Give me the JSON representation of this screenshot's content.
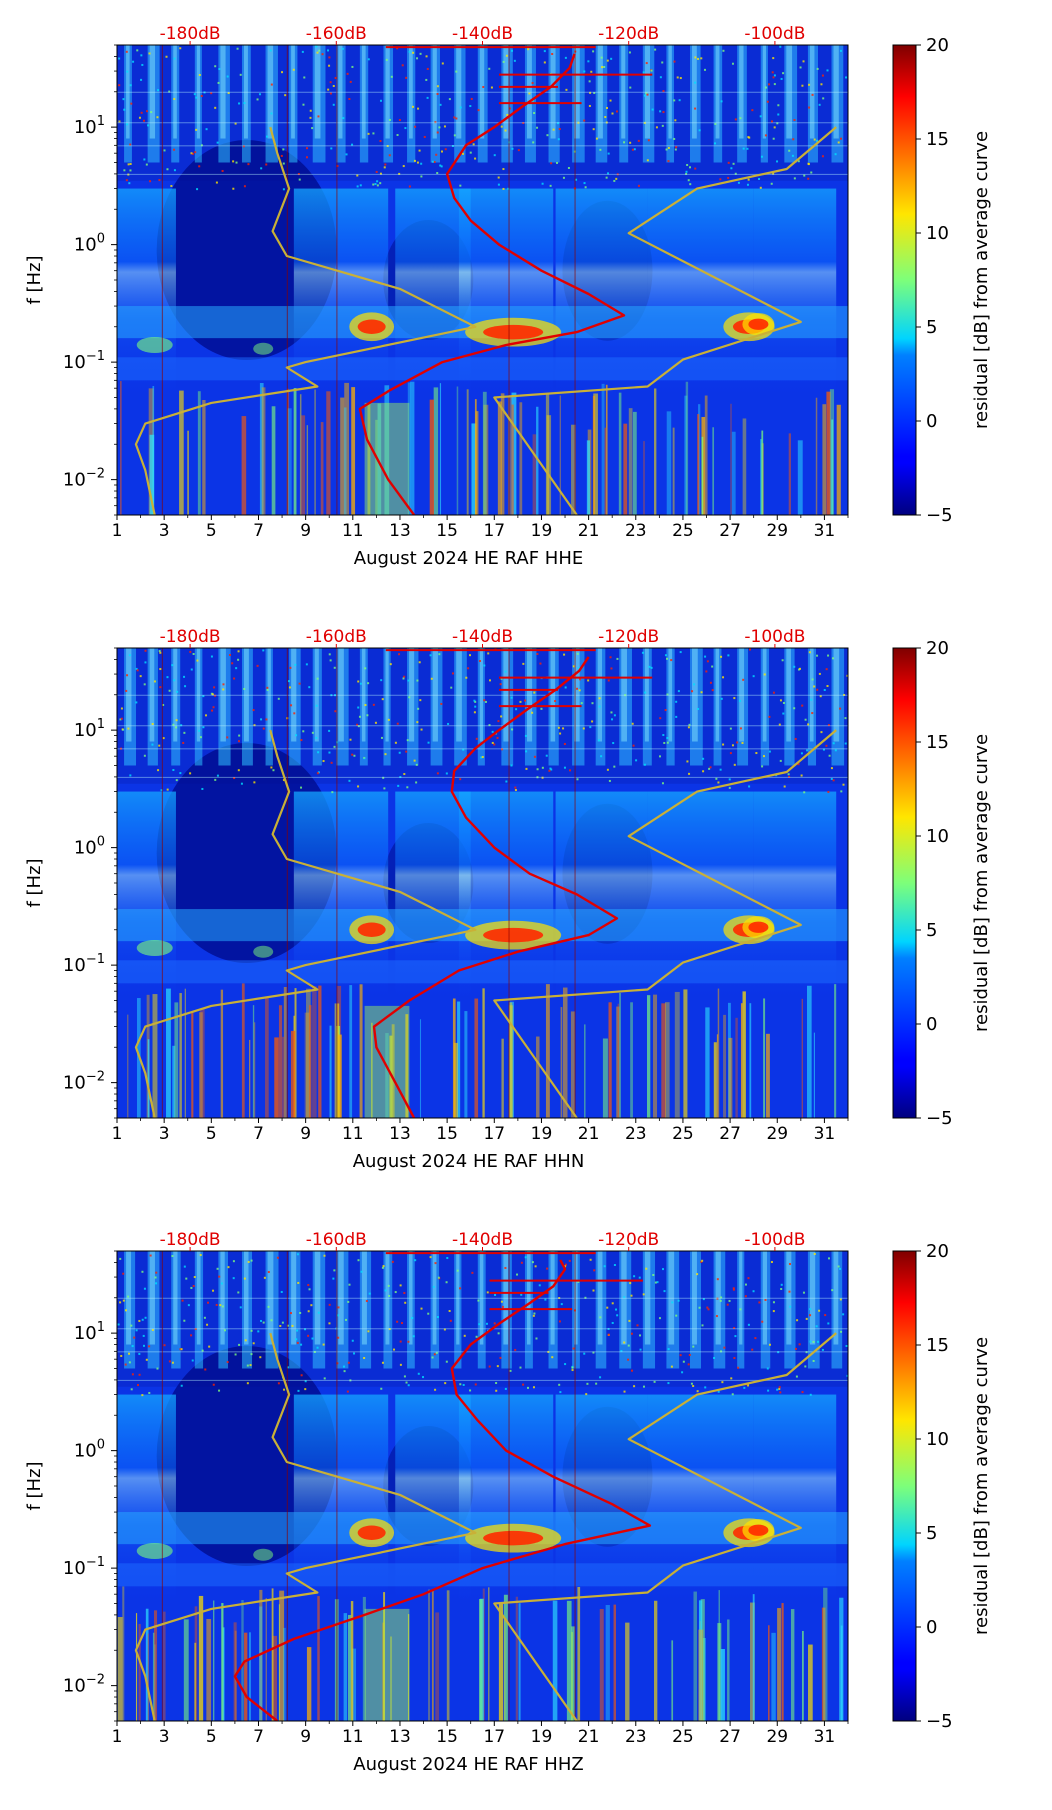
{
  "chart_data": [
    {
      "type": "heatmap",
      "title": "",
      "xlabel": "August 2024 HE RAF  HHE",
      "ylabel": "f [Hz]",
      "x_ticks": [
        1,
        3,
        5,
        7,
        9,
        11,
        13,
        15,
        17,
        19,
        21,
        23,
        25,
        27,
        29,
        31
      ],
      "x_tick_labels": [
        "1",
        "3",
        "5",
        "7",
        "9",
        "11",
        "13",
        "15",
        "17",
        "19",
        "21",
        "23",
        "25",
        "27",
        "29",
        "31"
      ],
      "xlim": [
        1,
        32
      ],
      "y_scale": "log",
      "ylim": [
        0.005,
        50
      ],
      "y_ticks": [
        {
          "value": 0.01,
          "base": "10",
          "exp": "−2"
        },
        {
          "value": 0.1,
          "base": "10",
          "exp": "−1"
        },
        {
          "value": 1,
          "base": "10",
          "exp": "0"
        },
        {
          "value": 10,
          "base": "10",
          "exp": "1"
        }
      ],
      "top_axis_labels": [
        "-180dB",
        "-160dB",
        "-140dB",
        "-120dB",
        "-100dB"
      ],
      "top_axis_positions_day": [
        4.1,
        10.3,
        16.5,
        22.7,
        28.9
      ],
      "colorbar": {
        "label": "residual [dB] from average curve",
        "min": -5,
        "max": 20,
        "ticks": [
          "20",
          "15",
          "10",
          "5",
          "0",
          "−5"
        ]
      },
      "series": [
        {
          "name": "average PSD curve",
          "color": "#e00000",
          "points": [
            [
              13.6,
              0.005
            ],
            [
              12.5,
              0.01
            ],
            [
              11.6,
              0.022
            ],
            [
              11.3,
              0.04
            ],
            [
              12.6,
              0.058
            ],
            [
              14.8,
              0.1
            ],
            [
              17.5,
              0.14
            ],
            [
              20.5,
              0.18
            ],
            [
              22.5,
              0.25
            ],
            [
              21,
              0.38
            ],
            [
              19,
              0.6
            ],
            [
              17.2,
              1.0
            ],
            [
              16,
              1.6
            ],
            [
              15.3,
              2.5
            ],
            [
              15,
              4
            ],
            [
              15.8,
              7
            ],
            [
              17,
              10
            ],
            [
              18.2,
              15
            ],
            [
              19.4,
              22
            ],
            [
              20.2,
              32
            ],
            [
              20.4,
              42
            ]
          ]
        },
        {
          "name": "NLNM",
          "color": "#c9b037",
          "points": [
            [
              2.6,
              0.005
            ],
            [
              2.2,
              0.012
            ],
            [
              1.8,
              0.02
            ],
            [
              2.2,
              0.03
            ],
            [
              5,
              0.045
            ],
            [
              9.5,
              0.062
            ],
            [
              8.2,
              0.09
            ],
            [
              9,
              0.1
            ],
            [
              16.2,
              0.2
            ],
            [
              13,
              0.42
            ],
            [
              8.2,
              0.8
            ],
            [
              7.6,
              1.3
            ],
            [
              8.3,
              3
            ],
            [
              7.8,
              6
            ],
            [
              7.5,
              10
            ]
          ]
        },
        {
          "name": "NHNM",
          "color": "#c9b037",
          "points": [
            [
              20.5,
              0.005
            ],
            [
              17,
              0.05
            ],
            [
              23.5,
              0.062
            ],
            [
              25,
              0.105
            ],
            [
              30,
              0.22
            ],
            [
              22.7,
              1.25
            ],
            [
              25.6,
              3
            ],
            [
              29.4,
              4.4
            ],
            [
              31.5,
              10
            ]
          ]
        }
      ]
    },
    {
      "type": "heatmap",
      "title": "",
      "xlabel": "August 2024 HE RAF  HHN",
      "ylabel": "f [Hz]",
      "x_ticks": [
        1,
        3,
        5,
        7,
        9,
        11,
        13,
        15,
        17,
        19,
        21,
        23,
        25,
        27,
        29,
        31
      ],
      "x_tick_labels": [
        "1",
        "3",
        "5",
        "7",
        "9",
        "11",
        "13",
        "15",
        "17",
        "19",
        "21",
        "23",
        "25",
        "27",
        "29",
        "31"
      ],
      "xlim": [
        1,
        32
      ],
      "y_scale": "log",
      "ylim": [
        0.005,
        50
      ],
      "y_ticks": [
        {
          "value": 0.01,
          "base": "10",
          "exp": "−2"
        },
        {
          "value": 0.1,
          "base": "10",
          "exp": "−1"
        },
        {
          "value": 1,
          "base": "10",
          "exp": "0"
        },
        {
          "value": 10,
          "base": "10",
          "exp": "1"
        }
      ],
      "top_axis_labels": [
        "-180dB",
        "-160dB",
        "-140dB",
        "-120dB",
        "-100dB"
      ],
      "top_axis_positions_day": [
        4.1,
        10.3,
        16.5,
        22.7,
        28.9
      ],
      "colorbar": {
        "label": "residual [dB] from average curve",
        "min": -5,
        "max": 20,
        "ticks": [
          "20",
          "15",
          "10",
          "5",
          "0",
          "−5"
        ]
      },
      "series": [
        {
          "name": "average PSD curve",
          "color": "#e00000",
          "points": [
            [
              13.6,
              0.005
            ],
            [
              12.8,
              0.01
            ],
            [
              12,
              0.02
            ],
            [
              11.9,
              0.03
            ],
            [
              13.4,
              0.05
            ],
            [
              15.5,
              0.09
            ],
            [
              18,
              0.13
            ],
            [
              21,
              0.18
            ],
            [
              22.2,
              0.25
            ],
            [
              20.5,
              0.4
            ],
            [
              18.5,
              0.6
            ],
            [
              17,
              1.0
            ],
            [
              15.8,
              1.8
            ],
            [
              15.2,
              3
            ],
            [
              15.3,
              4.5
            ],
            [
              16.2,
              7
            ],
            [
              17.2,
              10
            ],
            [
              18.4,
              15
            ],
            [
              19.6,
              22
            ],
            [
              20.6,
              32
            ],
            [
              21,
              42
            ]
          ]
        },
        {
          "name": "NLNM",
          "color": "#c9b037",
          "points": [
            [
              2.6,
              0.005
            ],
            [
              2.2,
              0.012
            ],
            [
              1.8,
              0.02
            ],
            [
              2.2,
              0.03
            ],
            [
              5,
              0.045
            ],
            [
              9.5,
              0.062
            ],
            [
              8.2,
              0.09
            ],
            [
              9,
              0.1
            ],
            [
              16.2,
              0.2
            ],
            [
              13,
              0.42
            ],
            [
              8.2,
              0.8
            ],
            [
              7.6,
              1.3
            ],
            [
              8.3,
              3
            ],
            [
              7.8,
              6
            ],
            [
              7.5,
              10
            ]
          ]
        },
        {
          "name": "NHNM",
          "color": "#c9b037",
          "points": [
            [
              20.5,
              0.005
            ],
            [
              17,
              0.05
            ],
            [
              23.5,
              0.062
            ],
            [
              25,
              0.105
            ],
            [
              30,
              0.22
            ],
            [
              22.7,
              1.25
            ],
            [
              25.6,
              3
            ],
            [
              29.4,
              4.4
            ],
            [
              31.5,
              10
            ]
          ]
        }
      ]
    },
    {
      "type": "heatmap",
      "title": "",
      "xlabel": "August 2024 HE RAF  HHZ",
      "ylabel": "f [Hz]",
      "x_ticks": [
        1,
        3,
        5,
        7,
        9,
        11,
        13,
        15,
        17,
        19,
        21,
        23,
        25,
        27,
        29,
        31
      ],
      "x_tick_labels": [
        "1",
        "3",
        "5",
        "7",
        "9",
        "11",
        "13",
        "15",
        "17",
        "19",
        "21",
        "23",
        "25",
        "27",
        "29",
        "31"
      ],
      "xlim": [
        1,
        32
      ],
      "y_scale": "log",
      "ylim": [
        0.005,
        50
      ],
      "y_ticks": [
        {
          "value": 0.01,
          "base": "10",
          "exp": "−2"
        },
        {
          "value": 0.1,
          "base": "10",
          "exp": "−1"
        },
        {
          "value": 1,
          "base": "10",
          "exp": "0"
        },
        {
          "value": 10,
          "base": "10",
          "exp": "1"
        }
      ],
      "top_axis_labels": [
        "-180dB",
        "-160dB",
        "-140dB",
        "-120dB",
        "-100dB"
      ],
      "top_axis_positions_day": [
        4.1,
        10.3,
        16.5,
        22.7,
        28.9
      ],
      "colorbar": {
        "label": "residual [dB] from average curve",
        "min": -5,
        "max": 20,
        "ticks": [
          "20",
          "15",
          "10",
          "5",
          "0",
          "−5"
        ]
      },
      "series": [
        {
          "name": "average PSD curve",
          "color": "#e00000",
          "points": [
            [
              7.8,
              0.005
            ],
            [
              6.5,
              0.008
            ],
            [
              6,
              0.012
            ],
            [
              6.4,
              0.016
            ],
            [
              8.5,
              0.025
            ],
            [
              11.5,
              0.04
            ],
            [
              14,
              0.06
            ],
            [
              16.5,
              0.1
            ],
            [
              20,
              0.16
            ],
            [
              23.6,
              0.23
            ],
            [
              22,
              0.35
            ],
            [
              19.5,
              0.6
            ],
            [
              17.5,
              1.0
            ],
            [
              16.3,
              1.8
            ],
            [
              15.4,
              3
            ],
            [
              15.2,
              5
            ],
            [
              16,
              8
            ],
            [
              17.2,
              12
            ],
            [
              18.5,
              18
            ],
            [
              19.5,
              25
            ],
            [
              20,
              35
            ],
            [
              19.8,
              42
            ]
          ]
        },
        {
          "name": "NLNM",
          "color": "#c9b037",
          "points": [
            [
              2.6,
              0.005
            ],
            [
              2.2,
              0.012
            ],
            [
              1.8,
              0.02
            ],
            [
              2.2,
              0.03
            ],
            [
              5,
              0.045
            ],
            [
              9.5,
              0.062
            ],
            [
              8.2,
              0.09
            ],
            [
              9,
              0.1
            ],
            [
              16.2,
              0.2
            ],
            [
              13,
              0.42
            ],
            [
              8.2,
              0.8
            ],
            [
              7.6,
              1.3
            ],
            [
              8.3,
              3
            ],
            [
              7.8,
              6
            ],
            [
              7.5,
              10
            ]
          ]
        },
        {
          "name": "NHNM",
          "color": "#c9b037",
          "points": [
            [
              20.5,
              0.005
            ],
            [
              17,
              0.05
            ],
            [
              23.5,
              0.062
            ],
            [
              25,
              0.105
            ],
            [
              30,
              0.22
            ],
            [
              22.7,
              1.25
            ],
            [
              25.6,
              3
            ],
            [
              29.4,
              4.4
            ],
            [
              31.5,
              10
            ]
          ]
        }
      ]
    }
  ]
}
